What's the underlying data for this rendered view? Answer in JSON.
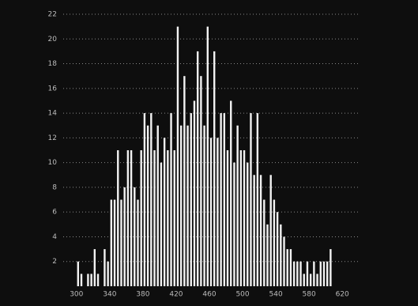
{
  "chart_data": {
    "type": "histogram",
    "bins": [
      300,
      304,
      308,
      312,
      316,
      320,
      324,
      328,
      332,
      336,
      340,
      344,
      348,
      352,
      356,
      360,
      364,
      368,
      372,
      376,
      380,
      384,
      388,
      392,
      396,
      400,
      404,
      408,
      412,
      416,
      420,
      424,
      428,
      432,
      436,
      440,
      444,
      448,
      452,
      456,
      460,
      464,
      468,
      472,
      476,
      480,
      484,
      488,
      492,
      496,
      500,
      504,
      508,
      512,
      516,
      520,
      524,
      528,
      532,
      536,
      540,
      544,
      548,
      552,
      556,
      560,
      564,
      568,
      572,
      576,
      580,
      584,
      588,
      592,
      596,
      600,
      604,
      608
    ],
    "counts": [
      2,
      1,
      0,
      1,
      1,
      3,
      1,
      0,
      3,
      2,
      7,
      7,
      11,
      7,
      8,
      11,
      11,
      8,
      7,
      11,
      14,
      13,
      14,
      11,
      13,
      10,
      12,
      11,
      14,
      11,
      21,
      13,
      17,
      13,
      14,
      15,
      19,
      17,
      13,
      21,
      12,
      19,
      12,
      14,
      14,
      11,
      15,
      10,
      13,
      11,
      11,
      10,
      14,
      9,
      14,
      9,
      7,
      5,
      9,
      7,
      6,
      5,
      4,
      3,
      3,
      2,
      2,
      2,
      1,
      2,
      1,
      2,
      1,
      2,
      2,
      2,
      3
    ],
    "color": "#f2f2f2",
    "xlim": [
      265,
      655
    ],
    "xticks": [
      300,
      340,
      380,
      420,
      460,
      500,
      540,
      580,
      620
    ],
    "ylim": [
      0,
      22
    ],
    "yticks": [
      2,
      4,
      6,
      8,
      10,
      12,
      14,
      16,
      18,
      20,
      22
    ],
    "grid": true
  }
}
